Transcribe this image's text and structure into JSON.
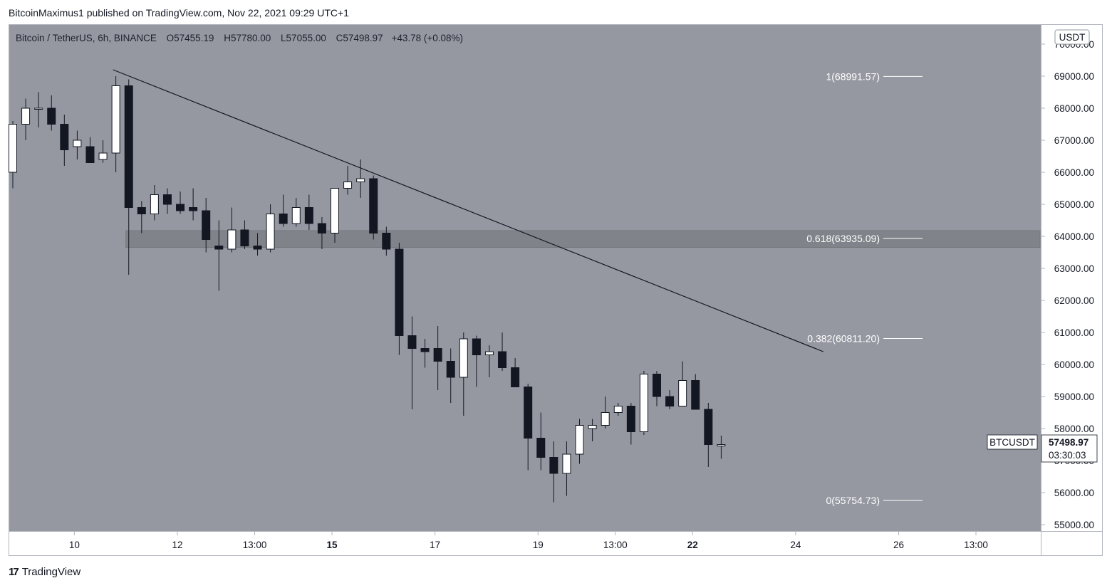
{
  "publisher": "BitcoinMaximus1 published on TradingView.com, Nov 22, 2021 09:29 UTC+1",
  "footer": {
    "brand": "TradingView",
    "mark": "17"
  },
  "legend": {
    "symbol": "Bitcoin / TetherUS, 6h, BINANCE",
    "o_label": "O",
    "o_value": "57455.19",
    "h_label": "H",
    "h_value": "57780.00",
    "l_label": "L",
    "l_value": "57055.00",
    "c_label": "C",
    "c_value": "57498.97",
    "change": "+43.78 (+0.08%)"
  },
  "price_axis": {
    "currency": "USDT",
    "last_symbol": "BTCUSDT",
    "last_price": "57498.97",
    "countdown": "03:30:03"
  },
  "colors": {
    "background": "#9598a1",
    "up": "#ffffff",
    "down": "#131722",
    "zone": "#7a7c82",
    "axis_bg": "#ffffff"
  },
  "chart_data": {
    "type": "candlestick",
    "timeframe": "6h",
    "ylim": [
      54800,
      70600
    ],
    "y_ticks": [
      "55000.00",
      "56000.00",
      "57000.00",
      "58000.00",
      "59000.00",
      "60000.00",
      "61000.00",
      "62000.00",
      "63000.00",
      "64000.00",
      "65000.00",
      "66000.00",
      "67000.00",
      "68000.00",
      "69000.00",
      "70000.00"
    ],
    "x_ticks": [
      {
        "label": "10",
        "bold": false,
        "bar": 5
      },
      {
        "label": "12",
        "bold": false,
        "bar": 13
      },
      {
        "label": "13:00",
        "bold": false,
        "bar": 19
      },
      {
        "label": "15",
        "bold": true,
        "bar": 25
      },
      {
        "label": "17",
        "bold": false,
        "bar": 33
      },
      {
        "label": "19",
        "bold": false,
        "bar": 41
      },
      {
        "label": "13:00",
        "bold": false,
        "bar": 47
      },
      {
        "label": "22",
        "bold": true,
        "bar": 53
      },
      {
        "label": "24",
        "bold": false,
        "bar": 61
      },
      {
        "label": "26",
        "bold": false,
        "bar": 69
      },
      {
        "label": "13:00",
        "bold": false,
        "bar": 75
      }
    ],
    "candles": [
      {
        "o": 66000,
        "h": 67600,
        "l": 65500,
        "c": 67500
      },
      {
        "o": 67500,
        "h": 68300,
        "l": 67000,
        "c": 68000
      },
      {
        "o": 68000,
        "h": 68500,
        "l": 67400,
        "c": 68000
      },
      {
        "o": 68000,
        "h": 68400,
        "l": 67300,
        "c": 67500
      },
      {
        "o": 67500,
        "h": 67800,
        "l": 66200,
        "c": 66700
      },
      {
        "o": 66800,
        "h": 67300,
        "l": 66400,
        "c": 67000
      },
      {
        "o": 66800,
        "h": 67100,
        "l": 66300,
        "c": 66300
      },
      {
        "o": 66400,
        "h": 67000,
        "l": 66300,
        "c": 66600
      },
      {
        "o": 66600,
        "h": 69000,
        "l": 66000,
        "c": 68700
      },
      {
        "o": 68700,
        "h": 68900,
        "l": 62800,
        "c": 64900
      },
      {
        "o": 64900,
        "h": 65100,
        "l": 64100,
        "c": 64700
      },
      {
        "o": 64700,
        "h": 65600,
        "l": 64500,
        "c": 65300
      },
      {
        "o": 65300,
        "h": 65500,
        "l": 64700,
        "c": 65000
      },
      {
        "o": 65000,
        "h": 65400,
        "l": 64700,
        "c": 64800
      },
      {
        "o": 64900,
        "h": 65500,
        "l": 64500,
        "c": 64800
      },
      {
        "o": 64800,
        "h": 65200,
        "l": 63500,
        "c": 63900
      },
      {
        "o": 63700,
        "h": 64500,
        "l": 62300,
        "c": 63600
      },
      {
        "o": 63600,
        "h": 64900,
        "l": 63500,
        "c": 64200
      },
      {
        "o": 64200,
        "h": 64500,
        "l": 63600,
        "c": 63700
      },
      {
        "o": 63700,
        "h": 64100,
        "l": 63400,
        "c": 63600
      },
      {
        "o": 63600,
        "h": 65000,
        "l": 63500,
        "c": 64700
      },
      {
        "o": 64700,
        "h": 65300,
        "l": 64300,
        "c": 64400
      },
      {
        "o": 64400,
        "h": 65200,
        "l": 64300,
        "c": 64900
      },
      {
        "o": 64900,
        "h": 65300,
        "l": 64200,
        "c": 64400
      },
      {
        "o": 64400,
        "h": 64600,
        "l": 63600,
        "c": 64100
      },
      {
        "o": 64100,
        "h": 65500,
        "l": 63800,
        "c": 65500
      },
      {
        "o": 65500,
        "h": 66200,
        "l": 65300,
        "c": 65700
      },
      {
        "o": 65700,
        "h": 66400,
        "l": 65200,
        "c": 65800
      },
      {
        "o": 65800,
        "h": 65900,
        "l": 63900,
        "c": 64100
      },
      {
        "o": 64100,
        "h": 64300,
        "l": 63400,
        "c": 63600
      },
      {
        "o": 63600,
        "h": 63800,
        "l": 60300,
        "c": 60900
      },
      {
        "o": 60900,
        "h": 61500,
        "l": 58600,
        "c": 60500
      },
      {
        "o": 60500,
        "h": 60800,
        "l": 59900,
        "c": 60400
      },
      {
        "o": 60500,
        "h": 61200,
        "l": 59200,
        "c": 60100
      },
      {
        "o": 60100,
        "h": 60500,
        "l": 58800,
        "c": 59600
      },
      {
        "o": 59600,
        "h": 61000,
        "l": 58400,
        "c": 60800
      },
      {
        "o": 60800,
        "h": 60900,
        "l": 59300,
        "c": 60300
      },
      {
        "o": 60300,
        "h": 60600,
        "l": 59600,
        "c": 60400
      },
      {
        "o": 60400,
        "h": 61000,
        "l": 59800,
        "c": 59900
      },
      {
        "o": 59900,
        "h": 60200,
        "l": 59400,
        "c": 59300
      },
      {
        "o": 59300,
        "h": 59400,
        "l": 56700,
        "c": 57700
      },
      {
        "o": 57700,
        "h": 58500,
        "l": 56700,
        "c": 57100
      },
      {
        "o": 57100,
        "h": 57600,
        "l": 55700,
        "c": 56600
      },
      {
        "o": 56600,
        "h": 57600,
        "l": 55900,
        "c": 57200
      },
      {
        "o": 57200,
        "h": 58300,
        "l": 56900,
        "c": 58100
      },
      {
        "o": 58000,
        "h": 58300,
        "l": 57600,
        "c": 58100
      },
      {
        "o": 58100,
        "h": 59000,
        "l": 58000,
        "c": 58500
      },
      {
        "o": 58500,
        "h": 58800,
        "l": 58400,
        "c": 58700
      },
      {
        "o": 58700,
        "h": 58800,
        "l": 57500,
        "c": 57900
      },
      {
        "o": 57900,
        "h": 59800,
        "l": 57800,
        "c": 59700
      },
      {
        "o": 59700,
        "h": 59800,
        "l": 58700,
        "c": 59000
      },
      {
        "o": 59000,
        "h": 59200,
        "l": 58600,
        "c": 58700
      },
      {
        "o": 58700,
        "h": 60100,
        "l": 58700,
        "c": 59500
      },
      {
        "o": 59500,
        "h": 59700,
        "l": 58600,
        "c": 58600
      },
      {
        "o": 58600,
        "h": 58800,
        "l": 56800,
        "c": 57500
      },
      {
        "o": 57455.19,
        "h": 57780,
        "l": 57055,
        "c": 57498.97
      }
    ],
    "fib_levels": [
      {
        "label": "1(68991.57)",
        "value": 68991.57
      },
      {
        "label": "0.618(63935.09)",
        "value": 63935.09
      },
      {
        "label": "0.382(60811.20)",
        "value": 60811.2
      },
      {
        "label": "0(55754.73)",
        "value": 55754.73
      }
    ],
    "zone": {
      "from": 63650,
      "to": 64180
    },
    "trendline": {
      "start_bar": 9,
      "start_price": 69200,
      "end_bar": 60,
      "end_price": 60400
    }
  }
}
